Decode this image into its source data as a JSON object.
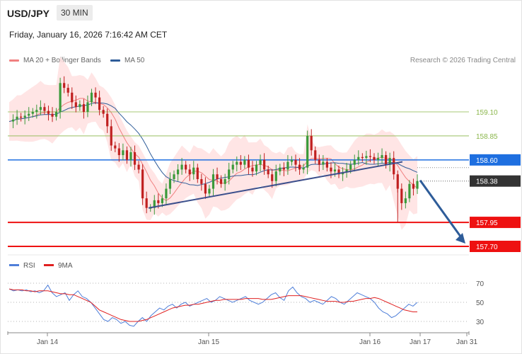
{
  "header": {
    "pair": "USD/JPY",
    "timeframe": "30 MIN"
  },
  "datetime": "Friday, January 16, 2026 7:16:42 AM CET",
  "legend": {
    "items": [
      {
        "label": "MA 20 + Bollinger Bands",
        "color": "#f08080"
      },
      {
        "label": "MA 50",
        "color": "#2e5c99"
      }
    ],
    "credit": "Research © 2026 Trading Central"
  },
  "rsi_legend": [
    {
      "label": "RSI",
      "color": "#4f7fd9"
    },
    {
      "label": "9MA",
      "color": "#e02020"
    }
  ],
  "chart_data": {
    "type": "candlestick",
    "symbol": "USD/JPY",
    "interval": "30 MIN",
    "ylim": [
      157.6,
      159.4
    ],
    "x_tick_labels": [
      "Jan 14",
      "Jan 15",
      "Jan 16",
      "Jan 17",
      "Jan 31"
    ],
    "levels": [
      {
        "value": 159.1,
        "label": "159.10",
        "kind": "resistance-minor",
        "color": "#8ab64a"
      },
      {
        "value": 158.85,
        "label": "158.85",
        "kind": "resistance-minor",
        "color": "#8ab64a"
      },
      {
        "value": 158.6,
        "label": "158.60",
        "kind": "pivot",
        "color": "#1e6fe0"
      },
      {
        "value": 158.38,
        "label": "158.38",
        "kind": "last-price",
        "color": "#333333"
      },
      {
        "value": 157.95,
        "label": "157.95",
        "kind": "support",
        "color": "#ee1111"
      },
      {
        "value": 157.7,
        "label": "157.70",
        "kind": "support",
        "color": "#ee1111"
      }
    ],
    "closes": [
      159.0,
      159.02,
      159.05,
      159.04,
      159.06,
      159.08,
      159.1,
      159.12,
      159.15,
      159.11,
      159.08,
      159.05,
      159.1,
      159.4,
      159.35,
      159.3,
      159.2,
      159.15,
      159.18,
      159.1,
      159.2,
      159.3,
      159.25,
      159.12,
      159.08,
      158.95,
      158.75,
      158.72,
      158.65,
      158.7,
      158.6,
      158.68,
      158.55,
      158.5,
      158.2,
      158.1,
      158.1,
      158.18,
      158.15,
      158.2,
      158.3,
      158.4,
      158.45,
      158.5,
      158.55,
      158.5,
      158.45,
      158.52,
      158.4,
      158.35,
      158.25,
      158.3,
      158.45,
      158.4,
      158.35,
      158.4,
      158.5,
      158.55,
      158.58,
      158.55,
      158.6,
      158.52,
      158.48,
      158.55,
      158.6,
      158.5,
      158.45,
      158.38,
      158.48,
      158.52,
      158.5,
      158.58,
      158.6,
      158.55,
      158.5,
      158.52,
      158.85,
      158.7,
      158.6,
      158.55,
      158.58,
      158.52,
      158.48,
      158.5,
      158.45,
      158.47,
      158.5,
      158.55,
      158.6,
      158.63,
      158.62,
      158.64,
      158.63,
      158.6,
      158.62,
      158.65,
      158.55,
      158.62,
      158.45,
      158.3,
      158.15,
      158.2,
      158.35,
      158.3,
      158.38
    ],
    "bollinger_band": {
      "top_level": 159.4,
      "bottom_level": 158.1
    },
    "projection": {
      "from": 158.38,
      "to": 157.7,
      "direction": "down"
    },
    "trendline": {
      "from": 158.1,
      "to": 158.58,
      "kind": "rising-support"
    },
    "rsi": {
      "ylim": [
        20,
        80
      ],
      "ticks": [
        70,
        50,
        30
      ],
      "rsi_values": [
        64,
        62,
        63,
        62,
        63,
        61,
        62,
        60,
        62,
        68,
        60,
        56,
        58,
        60,
        52,
        58,
        62,
        56,
        54,
        50,
        44,
        38,
        32,
        30,
        34,
        32,
        28,
        30,
        26,
        25,
        30,
        34,
        30,
        36,
        40,
        44,
        42,
        46,
        48,
        44,
        48,
        50,
        46,
        48,
        50,
        52,
        54,
        50,
        52,
        56,
        54,
        52,
        50,
        52,
        54,
        56,
        52,
        50,
        48,
        50,
        54,
        58,
        60,
        55,
        52,
        62,
        66,
        60,
        56,
        54,
        50,
        52,
        50,
        48,
        52,
        56,
        54,
        50,
        48,
        52,
        56,
        60,
        58,
        56,
        54,
        50,
        44,
        40,
        38,
        34,
        36,
        40,
        44,
        48,
        46,
        50
      ],
      "ma9_values": [
        64,
        63,
        63,
        63,
        62,
        62,
        61,
        62,
        62,
        62,
        61,
        60,
        59,
        59,
        58,
        58,
        56,
        54,
        52,
        50,
        46,
        42,
        40,
        38,
        36,
        34,
        32,
        31,
        30,
        30,
        30,
        31,
        32,
        34,
        36,
        38,
        40,
        42,
        44,
        45,
        46,
        47,
        47,
        48,
        48,
        49,
        50,
        51,
        52,
        52,
        53,
        53,
        53,
        53,
        53,
        54,
        54,
        54,
        54,
        53,
        53,
        53,
        54,
        55,
        56,
        57,
        57,
        57,
        57,
        56,
        55,
        54,
        53,
        52,
        51,
        51,
        51,
        50,
        50,
        51,
        51,
        52,
        53,
        54,
        54,
        55,
        54,
        52,
        50,
        48,
        46,
        44,
        42,
        41,
        40,
        40
      ]
    }
  }
}
